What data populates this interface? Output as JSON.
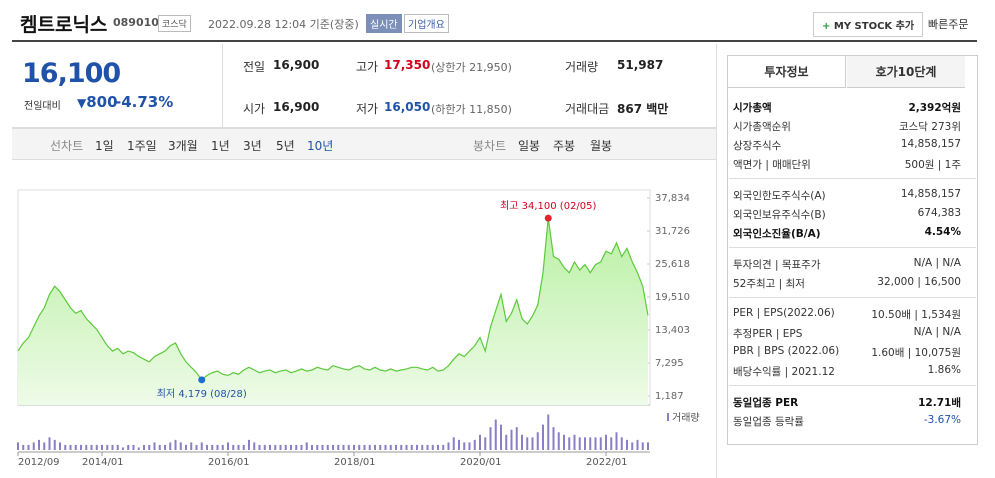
{
  "header": {
    "name": "켐트로닉스",
    "code": "089010",
    "market": "코스닥",
    "datetime": "2022.09.28 12:04 기준(장중)",
    "realtime": "실시간",
    "overview": "기업개요",
    "mystock": "MY STOCK 추가",
    "quick_order": "빠른주문"
  },
  "quote": {
    "price": "16,100",
    "change_label": "전일대비",
    "change": "800",
    "change_pct": "-4.73%",
    "stats": [
      {
        "label": "전일",
        "value": "16,900"
      },
      {
        "label": "고가",
        "value": "17,350",
        "note": "(상한가 21,950)"
      },
      {
        "label": "거래량",
        "value": "51,987"
      },
      {
        "label": "시가",
        "value": "16,900"
      },
      {
        "label": "저가",
        "value": "16,050",
        "note": "(하한가 11,850)"
      },
      {
        "label": "거래대금",
        "value": "867 백만"
      }
    ]
  },
  "periods": {
    "line_label": "선차트",
    "line": [
      "1일",
      "1주일",
      "3개월",
      "1년",
      "3년",
      "5년",
      "10년"
    ],
    "candle_label": "봉차트",
    "candle": [
      "일봉",
      "주봉",
      "월봉"
    ]
  },
  "chart_data": {
    "type": "area",
    "categories": [
      "2012/09",
      "2012/10",
      "2012/11",
      "2012/12",
      "2013/01",
      "2013/02",
      "2013/03",
      "2013/04",
      "2013/05",
      "2013/06",
      "2013/07",
      "2013/08",
      "2013/09",
      "2013/10",
      "2013/11",
      "2013/12",
      "2014/01",
      "2014/02",
      "2014/03",
      "2014/04",
      "2014/05",
      "2014/06",
      "2014/07",
      "2014/08",
      "2014/09",
      "2014/10",
      "2014/11",
      "2014/12",
      "2015/01",
      "2015/02",
      "2015/03",
      "2015/04",
      "2015/05",
      "2015/06",
      "2015/07",
      "2015/08",
      "2015/09",
      "2015/10",
      "2015/11",
      "2015/12",
      "2016/01",
      "2016/02",
      "2016/03",
      "2016/04",
      "2016/05",
      "2016/06",
      "2016/07",
      "2016/08",
      "2016/09",
      "2016/10",
      "2016/11",
      "2016/12",
      "2017/01",
      "2017/02",
      "2017/03",
      "2017/04",
      "2017/05",
      "2017/06",
      "2017/07",
      "2017/08",
      "2017/09",
      "2017/10",
      "2017/11",
      "2017/12",
      "2018/01",
      "2018/02",
      "2018/03",
      "2018/04",
      "2018/05",
      "2018/06",
      "2018/07",
      "2018/08",
      "2018/09",
      "2018/10",
      "2018/11",
      "2018/12",
      "2019/01",
      "2019/02",
      "2019/03",
      "2019/04",
      "2019/05",
      "2019/06",
      "2019/07",
      "2019/08",
      "2019/09",
      "2019/10",
      "2019/11",
      "2019/12",
      "2020/01",
      "2020/02",
      "2020/03",
      "2020/04",
      "2020/05",
      "2020/06",
      "2020/07",
      "2020/08",
      "2020/09",
      "2020/10",
      "2020/11",
      "2020/12",
      "2021/01",
      "2021/02",
      "2021/03",
      "2021/04",
      "2021/05",
      "2021/06",
      "2021/07",
      "2021/08",
      "2021/09",
      "2021/10",
      "2021/11",
      "2021/12",
      "2022/01",
      "2022/02",
      "2022/03",
      "2022/04",
      "2022/05",
      "2022/06",
      "2022/07",
      "2022/08",
      "2022/09"
    ],
    "series": [
      {
        "color": "#5cc93a",
        "values": [
          9500,
          11000,
          12000,
          14000,
          16000,
          17500,
          20000,
          21500,
          20500,
          19000,
          17500,
          16500,
          17000,
          15500,
          14500,
          13500,
          12000,
          10500,
          9500,
          10000,
          9000,
          9500,
          9200,
          8500,
          8000,
          7500,
          8500,
          9000,
          9500,
          10500,
          11000,
          9000,
          7500,
          6500,
          5500,
          4179,
          5000,
          5500,
          5800,
          5200,
          5000,
          5500,
          5200,
          6000,
          6500,
          6000,
          5500,
          5800,
          6000,
          5500,
          5800,
          6000,
          5500,
          5800,
          6200,
          5800,
          6000,
          6500,
          6200,
          6000,
          6800,
          6500,
          6200,
          6000,
          6500,
          6800,
          6200,
          6000,
          6500,
          6000,
          5800,
          6200,
          5800,
          6000,
          6200,
          6500,
          6500,
          6200,
          6000,
          6500,
          5800,
          6000,
          6800,
          8000,
          9000,
          8500,
          9500,
          10500,
          12000,
          9500,
          14000,
          17000,
          20000,
          15000,
          16500,
          19000,
          15500,
          14500,
          16000,
          18000,
          24000,
          34100,
          27000,
          26500,
          25000,
          24000,
          26000,
          24500,
          25500,
          24000,
          25500,
          26000,
          28000,
          27500,
          29500,
          27000,
          28500,
          26000,
          24000,
          21500,
          16100
        ]
      },
      {
        "name": "거래량",
        "color": "#8a7fc4",
        "axis": "y2",
        "values": [
          3,
          2,
          2,
          3,
          4,
          3,
          5,
          4,
          3,
          2,
          2,
          2,
          2,
          2,
          2,
          2,
          2,
          2,
          2,
          2,
          1,
          2,
          2,
          1,
          2,
          2,
          3,
          2,
          2,
          3,
          4,
          3,
          2,
          3,
          2,
          3,
          2,
          2,
          2,
          2,
          3,
          2,
          2,
          2,
          4,
          3,
          2,
          2,
          2,
          2,
          2,
          2,
          2,
          2,
          2,
          3,
          2,
          2,
          2,
          2,
          2,
          2,
          2,
          2,
          2,
          2,
          2,
          2,
          2,
          2,
          2,
          2,
          2,
          2,
          2,
          2,
          2,
          2,
          2,
          2,
          2,
          2,
          3,
          5,
          4,
          3,
          3,
          4,
          6,
          5,
          9,
          12,
          10,
          6,
          8,
          9,
          6,
          5,
          5,
          7,
          10,
          14,
          9,
          7,
          6,
          5,
          6,
          5,
          5,
          5,
          5,
          5,
          6,
          5,
          7,
          5,
          4,
          3,
          4,
          3,
          3
        ]
      }
    ],
    "ylim": [
      1187,
      37834
    ],
    "yticks": [
      {
        "value": 1187,
        "label": "1,187"
      },
      {
        "value": 7295,
        "label": "7,295"
      },
      {
        "value": 13403,
        "label": "13,403"
      },
      {
        "value": 19510,
        "label": "19,510"
      },
      {
        "value": 25618,
        "label": "25,618"
      },
      {
        "value": 31726,
        "label": "31,726"
      },
      {
        "value": 37834,
        "label": "37,834"
      }
    ],
    "y2lim": [
      0,
      15
    ],
    "xticks": [
      "2012/09",
      "2014/01",
      "2016/01",
      "2018/01",
      "2020/01",
      "2022/01"
    ],
    "grid": false,
    "max_label": "최고 34,100 (02/05)",
    "min_label": "최저 4,179 (08/28)"
  },
  "invest": {
    "tabs": [
      "투자정보",
      "호가10단계"
    ],
    "sections": [
      [
        {
          "label": "시가총액",
          "value": "2,392억원"
        },
        {
          "label": "시가총액순위",
          "value": "코스닥 273위"
        },
        {
          "label": "상장주식수",
          "value": "14,858,157"
        },
        {
          "label": "액면가 | 매매단위",
          "value": "500원 | 1주"
        }
      ],
      [
        {
          "label": "외국인한도주식수(A)",
          "value": "14,858,157"
        },
        {
          "label": "외국인보유주식수(B)",
          "value": "674,383"
        },
        {
          "label": "외국인소진율(B/A)",
          "value": "4.54%"
        }
      ],
      [
        {
          "label": "투자의견 | 목표주가",
          "value": "N/A | N/A"
        },
        {
          "label": "52주최고 | 최저",
          "value": "32,000 | 16,500"
        }
      ],
      [
        {
          "label": "PER | EPS(2022.06)",
          "value": "10.50배 | 1,534원"
        },
        {
          "label": "추정PER | EPS",
          "value": "N/A | N/A"
        },
        {
          "label": "PBR | BPS (2022.06)",
          "value": "1.60배 | 10,075원"
        },
        {
          "label": "배당수익률 | 2021.12",
          "value": "1.86%"
        }
      ],
      [
        {
          "label": "동일업종 PER",
          "value": "12.71배"
        },
        {
          "label": "동일업종 등락률",
          "value": "-3.67%"
        }
      ]
    ]
  }
}
